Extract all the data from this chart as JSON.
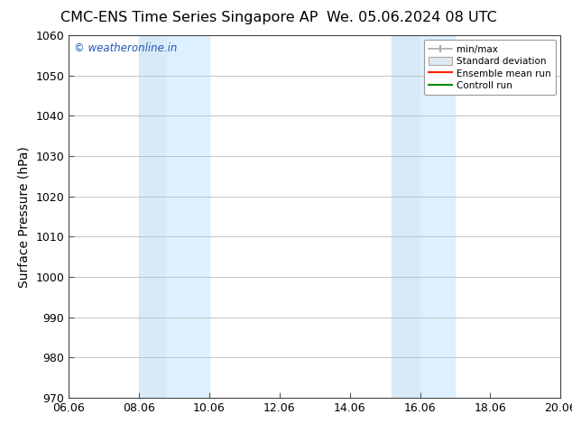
{
  "title_left": "CMC-ENS Time Series Singapore AP",
  "title_right": "We. 05.06.2024 08 UTC",
  "ylabel": "Surface Pressure (hPa)",
  "ylim": [
    970,
    1060
  ],
  "yticks": [
    970,
    980,
    990,
    1000,
    1010,
    1020,
    1030,
    1040,
    1050,
    1060
  ],
  "xtick_labels": [
    "06.06",
    "08.06",
    "10.06",
    "12.06",
    "14.06",
    "16.06",
    "18.06",
    "20.06"
  ],
  "xtick_positions": [
    0,
    2,
    4,
    6,
    8,
    10,
    12,
    14
  ],
  "shaded_regions": [
    {
      "x_start": 2.0,
      "x_end": 2.8,
      "color": "#d8eaf8"
    },
    {
      "x_start": 2.8,
      "x_end": 4.0,
      "color": "#ddf0ff"
    },
    {
      "x_start": 9.2,
      "x_end": 10.0,
      "color": "#d8eaf8"
    },
    {
      "x_start": 10.0,
      "x_end": 11.0,
      "color": "#ddf0ff"
    }
  ],
  "watermark_text": "© weatheronline.in",
  "watermark_color": "#2255bb",
  "legend_labels": [
    "min/max",
    "Standard deviation",
    "Ensemble mean run",
    "Controll run"
  ],
  "background_color": "#ffffff",
  "grid_color": "#bbbbbb",
  "title_fontsize": 11.5,
  "axis_label_fontsize": 10,
  "tick_fontsize": 9
}
